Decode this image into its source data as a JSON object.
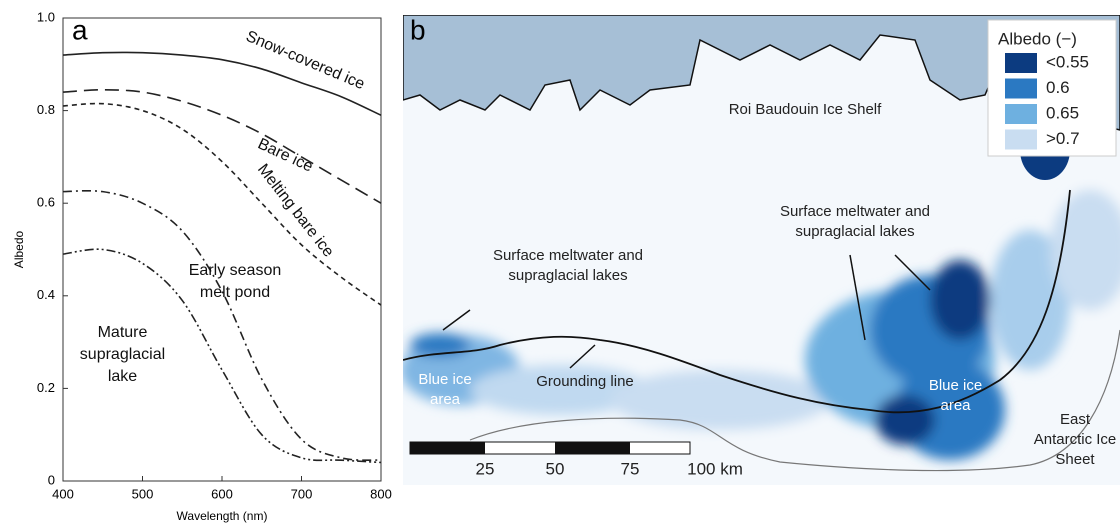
{
  "chart_data": {
    "type": "line",
    "panel_label": "a",
    "x_label": "Wavelength (nm)",
    "y_label": "Albedo",
    "x": [
      400,
      450,
      500,
      550,
      600,
      650,
      700,
      750,
      800
    ],
    "xlim": [
      400,
      800
    ],
    "xticks": [
      400,
      500,
      600,
      700,
      800
    ],
    "ylim": [
      0,
      1
    ],
    "yticks": [
      0,
      0.2,
      0.4,
      0.6,
      0.8,
      {
        "value": 1,
        "label": "1.0"
      }
    ],
    "series": [
      {
        "name": "Snow-covered ice",
        "color": "#222222",
        "dash": "none",
        "values": [
          0.92,
          0.925,
          0.925,
          0.92,
          0.91,
          0.89,
          0.86,
          0.83,
          0.79
        ]
      },
      {
        "name": "Bare ice",
        "color": "#222222",
        "dash": "14 7",
        "values": [
          0.84,
          0.845,
          0.84,
          0.82,
          0.79,
          0.75,
          0.7,
          0.65,
          0.6
        ]
      },
      {
        "name": "Melting bare ice",
        "color": "#222222",
        "dash": "5 4",
        "values": [
          0.81,
          0.815,
          0.8,
          0.76,
          0.69,
          0.6,
          0.51,
          0.44,
          0.38
        ]
      },
      {
        "name": "Early season melt pond",
        "color": "#222222",
        "dash": "9 4 2 4",
        "values": [
          0.625,
          0.625,
          0.6,
          0.54,
          0.41,
          0.22,
          0.09,
          0.05,
          0.045
        ]
      },
      {
        "name": "Mature supraglacial lake",
        "color": "#222222",
        "dash": "9 3 2 3 2 3",
        "values": [
          0.49,
          0.5,
          0.47,
          0.39,
          0.24,
          0.1,
          0.05,
          0.045,
          0.04
        ]
      }
    ]
  },
  "map": {
    "panel_label": "b",
    "legend": {
      "title": "Albedo (−)",
      "entries": [
        {
          "label": "<0.55",
          "color": "#0c3b80"
        },
        {
          "label": "0.6",
          "color": "#2b79c2"
        },
        {
          "label": "0.65",
          "color": "#6eb0e0"
        },
        {
          "label": ">0.7",
          "color": "#c9ddf1"
        }
      ]
    },
    "annotations": {
      "ice_shelf": "Roi Baudouin Ice Shelf",
      "lakes_left": "Surface meltwater and supraglacial lakes",
      "lakes_right": "Surface meltwater and supraglacial lakes",
      "grounding_line": "Grounding line",
      "blue_ice_left": "Blue ice area",
      "blue_ice_right": "Blue ice area",
      "ice_sheet": "East Antarctic Ice Sheet"
    },
    "scale_bar": [
      "25",
      "50",
      "75",
      "100 km"
    ]
  }
}
